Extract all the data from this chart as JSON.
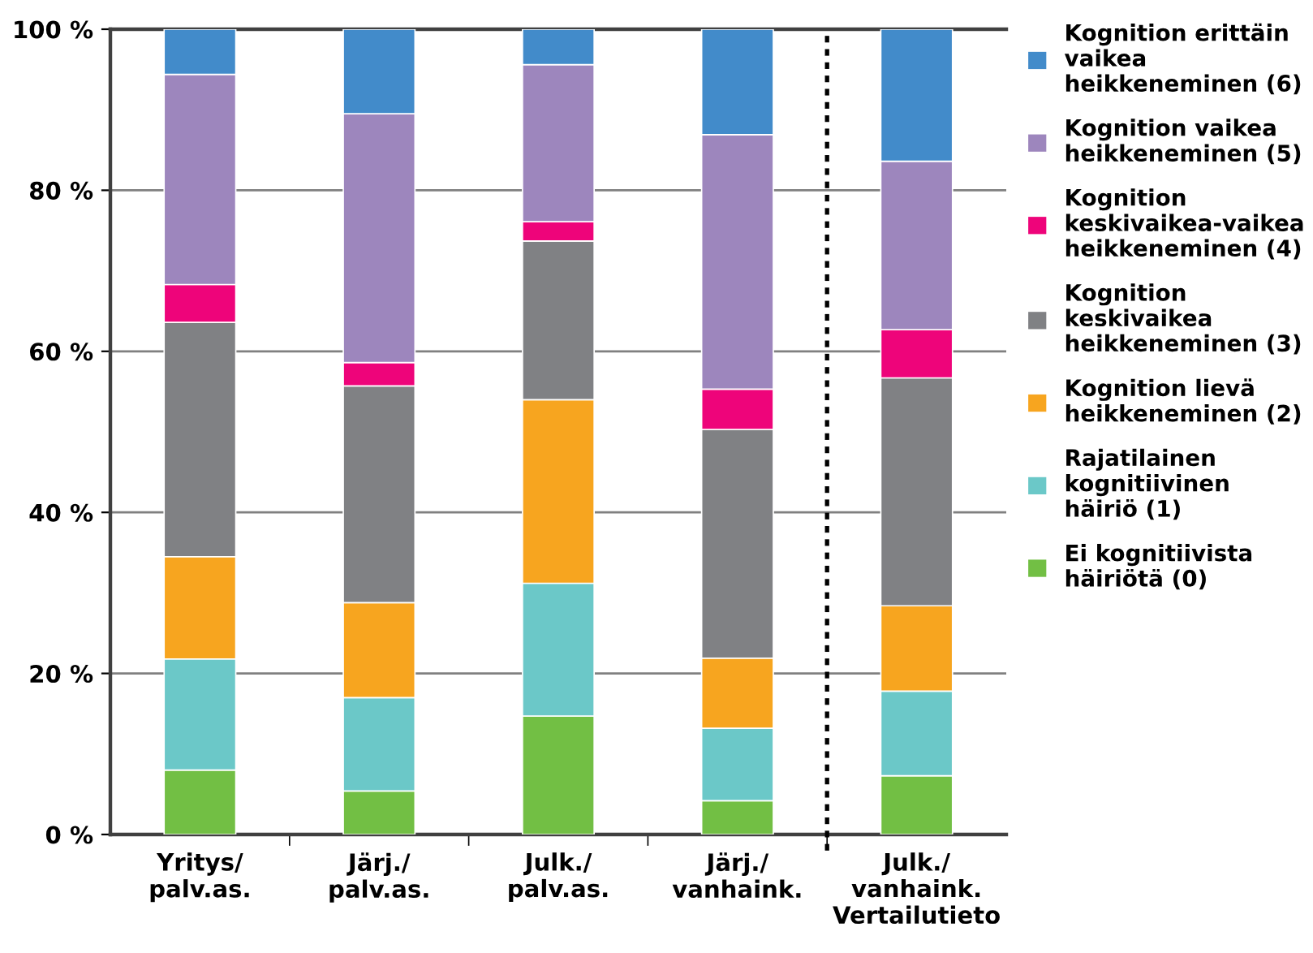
{
  "chart_data": {
    "type": "bar",
    "stacked": true,
    "categories": [
      "Yritys/\npalv.as.",
      "Järj./\npalv.as.",
      "Julk./\npalv.as.",
      "Järj./\nvanhaink.",
      "Julk./\nvanhaink.\nVertailutieto"
    ],
    "series": [
      {
        "name": "Ei kognitiivista\nhäiriötä (0)",
        "color": "#72bf44",
        "values": [
          8.0,
          5.4,
          14.7,
          4.2,
          7.3
        ]
      },
      {
        "name": "Rajatilainen\nkognitiivinen\nhäiriö (1)",
        "color": "#6bc8c8",
        "values": [
          13.8,
          11.6,
          16.5,
          9.0,
          10.5
        ]
      },
      {
        "name": "Kognition lievä\nheikkeneminen (2)",
        "color": "#f7a51f",
        "values": [
          12.7,
          11.8,
          22.8,
          8.7,
          10.6
        ]
      },
      {
        "name": "Kognition\nkeskivaikea\nheikkeneminen (3)",
        "color": "#808184",
        "values": [
          29.1,
          26.9,
          19.7,
          28.4,
          28.3
        ]
      },
      {
        "name": "Kognition\nkeskivaikea-vaikea\nheikkeneminen (4)",
        "color": "#ee047a",
        "values": [
          4.7,
          2.9,
          2.4,
          5.0,
          6.0
        ]
      },
      {
        "name": "Kognition vaikea\nheikkeneminen (5)",
        "color": "#9d86bd",
        "values": [
          26.1,
          30.9,
          19.5,
          31.6,
          20.9
        ]
      },
      {
        "name": "Kognition erittäin\nvaikea\nheikkeneminen (6)",
        "color": "#428bca",
        "values": [
          5.6,
          10.5,
          4.4,
          13.1,
          16.4
        ]
      }
    ],
    "ylim": [
      0,
      100
    ],
    "yticks": [
      {
        "value": 0,
        "label": "0 %"
      },
      {
        "value": 20,
        "label": "20 %"
      },
      {
        "value": 40,
        "label": "40 %"
      },
      {
        "value": 60,
        "label": "60 %"
      },
      {
        "value": 80,
        "label": "80 %"
      },
      {
        "value": 100,
        "label": "100 %"
      }
    ],
    "grid": "y",
    "legend": "right"
  }
}
